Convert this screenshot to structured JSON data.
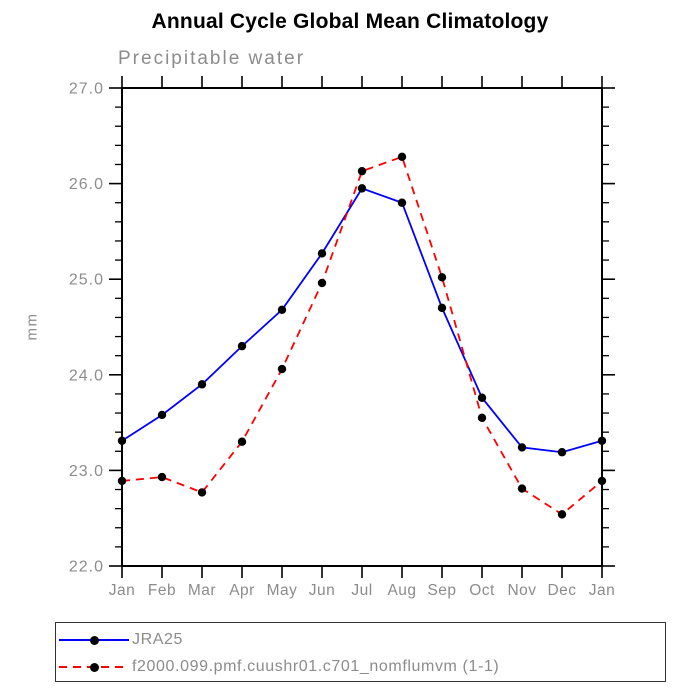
{
  "page": {
    "title": "Annual Cycle Global Mean Climatology",
    "subtitle": "Precipitable water",
    "y_axis_label": "mm"
  },
  "legend": {
    "entries": [
      {
        "label": "JRA25",
        "color": "#0000ff",
        "line_style": "solid",
        "marker": "black-circle"
      },
      {
        "label": "f2000.099.pmf.cuushr01.c701_nomflumvm (1-1)",
        "color": "#ff0000",
        "line_style": "dashed",
        "marker": "black-circle"
      }
    ]
  },
  "colors": {
    "series1": "#0000ff",
    "series2": "#ff0000",
    "marker": "#000000",
    "axis": "#000000",
    "gray_text": "#8c8c8c"
  },
  "chart_data": {
    "type": "line",
    "title": "Annual Cycle Global Mean Climatology",
    "subtitle": "Precipitable water",
    "xlabel": "",
    "ylabel": "mm",
    "categories": [
      "Jan",
      "Feb",
      "Mar",
      "Apr",
      "May",
      "Jun",
      "Jul",
      "Aug",
      "Sep",
      "Oct",
      "Nov",
      "Dec",
      "Jan"
    ],
    "series": [
      {
        "name": "JRA25",
        "color": "#0000ff",
        "line_style": "solid",
        "marker": "circle",
        "values": [
          23.31,
          23.58,
          23.9,
          24.3,
          24.68,
          25.27,
          25.95,
          25.8,
          24.7,
          23.76,
          23.24,
          23.19,
          23.31
        ]
      },
      {
        "name": "f2000.099.pmf.cuushr01.c701_nomflumvm (1-1)",
        "color": "#ff0000",
        "line_style": "dashed",
        "marker": "circle",
        "values": [
          22.89,
          22.93,
          22.77,
          23.3,
          24.06,
          24.96,
          26.13,
          26.28,
          25.02,
          23.55,
          22.81,
          22.54,
          22.89
        ]
      }
    ],
    "ylim": [
      22.0,
      27.0
    ],
    "ytick_interval": 1.0,
    "yminor_interval": 0.2,
    "ytick_labels": [
      "22.0",
      "23.0",
      "24.0",
      "25.0",
      "26.0",
      "27.0"
    ],
    "marker_color": "#000000",
    "grid": false,
    "legend_position": "bottom-left-box"
  }
}
